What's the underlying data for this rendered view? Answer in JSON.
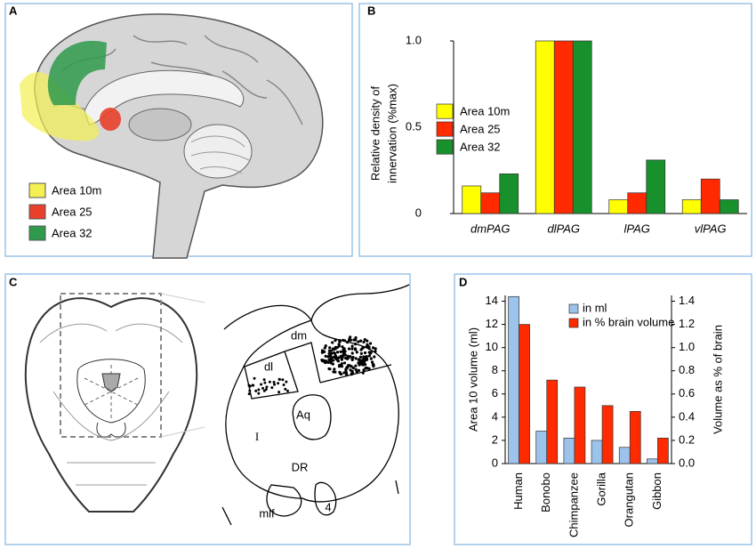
{
  "panels": {
    "a": {
      "label": "A",
      "legend": [
        {
          "name": "Area 10m",
          "color": "#f4ef52"
        },
        {
          "name": "Area 25",
          "color": "#e8402a"
        },
        {
          "name": "Area 32",
          "color": "#2f9a4c"
        }
      ]
    },
    "c": {
      "label": "C",
      "labels": [
        "dl",
        "dm",
        "Aq",
        "I",
        "DR",
        "mlf",
        "4"
      ]
    }
  },
  "chart_data": [
    {
      "type": "bar",
      "panel": "B",
      "ylabel": [
        "Relative density of",
        "innervation (%max)"
      ],
      "categories": [
        "dmPAG",
        "dlPAG",
        "lPAG",
        "vlPAG"
      ],
      "series": [
        {
          "name": "Area 10m",
          "color": "#ffff00",
          "values": [
            0.16,
            1.0,
            0.08,
            0.08
          ]
        },
        {
          "name": "Area 25",
          "color": "#ff2a00",
          "values": [
            0.12,
            1.0,
            0.12,
            0.2
          ]
        },
        {
          "name": "Area 32",
          "color": "#18902c",
          "values": [
            0.23,
            1.0,
            0.31,
            0.08
          ]
        }
      ],
      "ylim": [
        0,
        1
      ],
      "yticks": [
        0,
        0.5,
        {
          "value": 1,
          "label": "1.0"
        }
      ]
    },
    {
      "type": "bar",
      "panel": "D",
      "ylabel": "Area 10 volume (ml)",
      "y2label": "Volume as % of brain",
      "categories": [
        "Human",
        "Bonobo",
        "Chimpanzee",
        "Gorilla",
        "Orangutan",
        "Gibbon"
      ],
      "series": [
        {
          "name": "in ml",
          "color": "#9cc3ec",
          "values": [
            14.4,
            2.8,
            2.2,
            2.0,
            1.4,
            0.4
          ]
        },
        {
          "name": "in % brain volume",
          "color": "#ff2a00",
          "axis": "y2",
          "values": [
            1.2,
            0.72,
            0.66,
            0.5,
            0.45,
            0.22
          ]
        }
      ],
      "ylim": [
        0,
        14.5
      ],
      "yticks": [
        0,
        2,
        4,
        6,
        8,
        10,
        12,
        14
      ],
      "y2lim": [
        0,
        1.45
      ],
      "y2ticks": [
        {
          "value": 0,
          "label": "0.0"
        },
        0.2,
        0.4,
        0.6,
        0.8,
        {
          "value": 1,
          "label": "1.0"
        },
        1.2,
        1.4
      ]
    }
  ]
}
